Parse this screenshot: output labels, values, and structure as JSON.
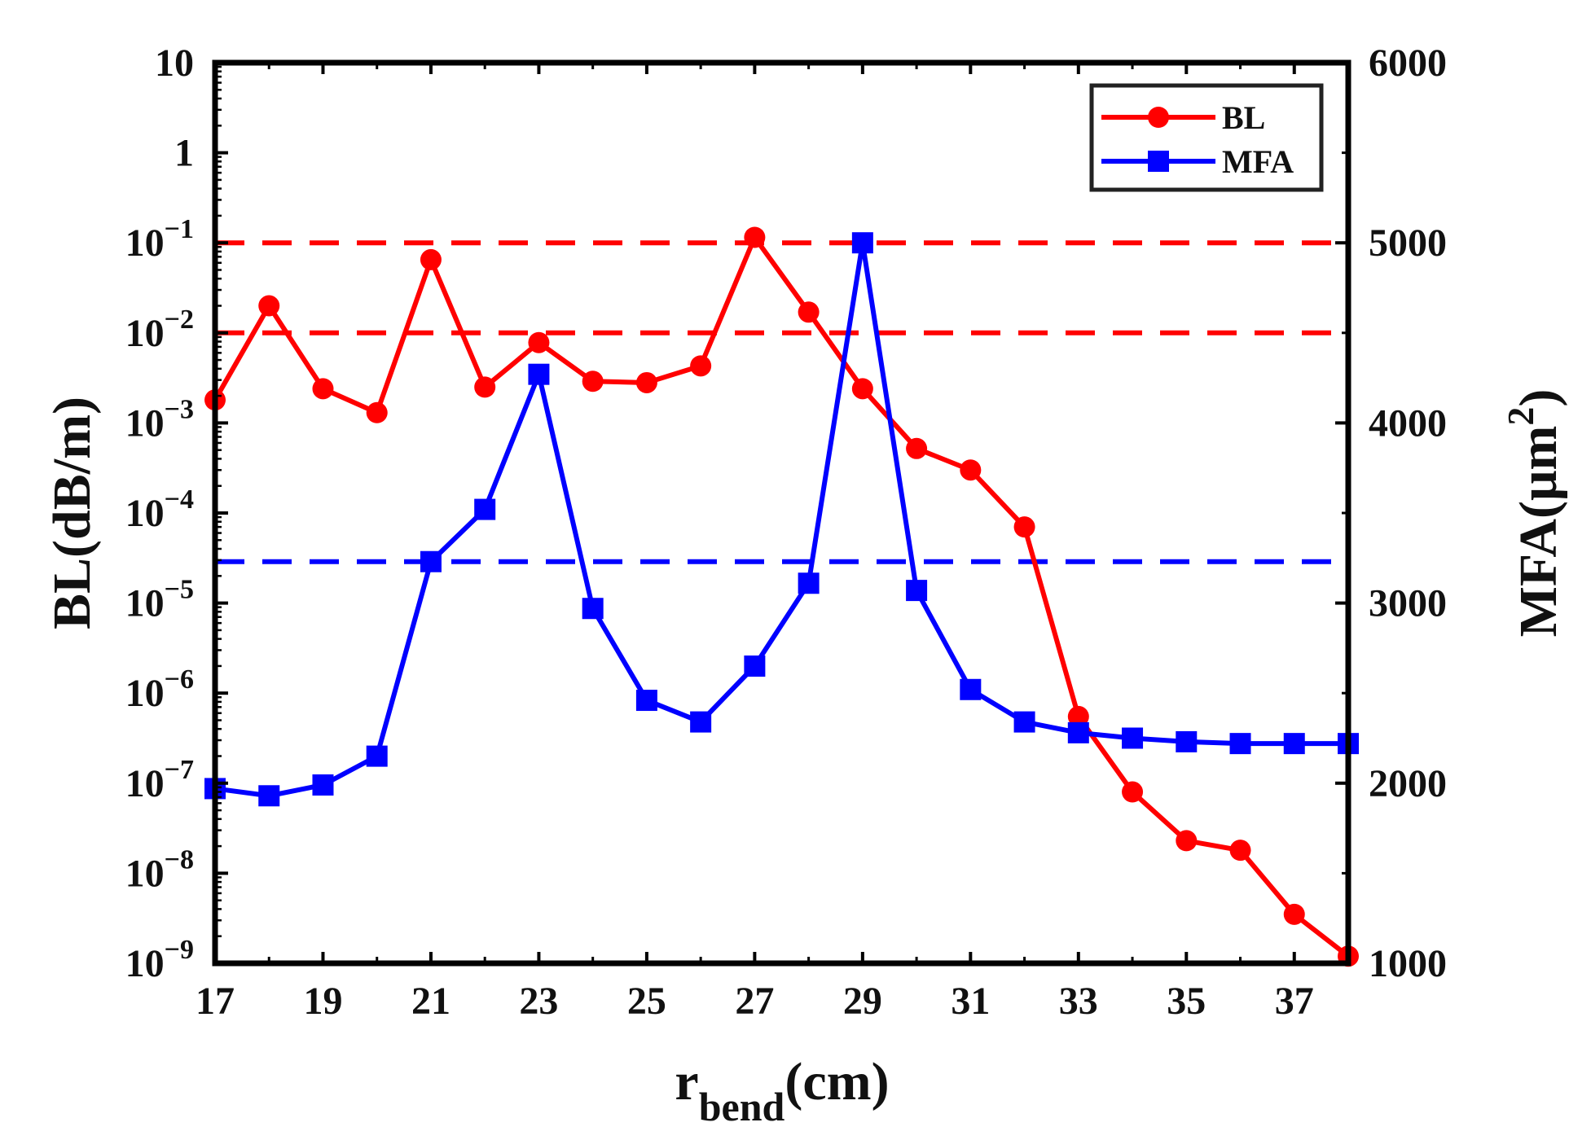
{
  "chart_data": {
    "type": "line",
    "x_axis": {
      "label_main": "r",
      "label_sub": "bend",
      "label_unit": "(cm)",
      "range": [
        17,
        38
      ],
      "ticks": [
        17,
        19,
        21,
        23,
        25,
        27,
        29,
        31,
        33,
        35,
        37
      ]
    },
    "y_left": {
      "label": "BL(dB/m)",
      "scale": "log",
      "range": [
        1e-09,
        10
      ],
      "tick_labels": [
        {
          "value": 10,
          "base": "10",
          "exp": ""
        },
        {
          "value": 1,
          "base": "1",
          "exp": ""
        },
        {
          "value": 0.1,
          "base": "10",
          "exp": "−1"
        },
        {
          "value": 0.01,
          "base": "10",
          "exp": "−2"
        },
        {
          "value": 0.001,
          "base": "10",
          "exp": "−3"
        },
        {
          "value": 0.0001,
          "base": "10",
          "exp": "−4"
        },
        {
          "value": 1e-05,
          "base": "10",
          "exp": "−5"
        },
        {
          "value": 1e-06,
          "base": "10",
          "exp": "−6"
        },
        {
          "value": 1e-07,
          "base": "10",
          "exp": "−7"
        },
        {
          "value": 1e-08,
          "base": "10",
          "exp": "−8"
        },
        {
          "value": 1e-09,
          "base": "10",
          "exp": "−9"
        }
      ]
    },
    "y_right": {
      "label_main": "MFA(μm",
      "label_exp": "2",
      "label_close": ")",
      "scale": "linear",
      "range": [
        1000,
        6000
      ],
      "ticks": [
        1000,
        2000,
        3000,
        4000,
        5000,
        6000
      ]
    },
    "series": [
      {
        "name": "BL",
        "axis": "left",
        "color": "#ff0000",
        "marker": "circle",
        "x": [
          17,
          18,
          19,
          20,
          21,
          22,
          23,
          24,
          25,
          26,
          27,
          28,
          29,
          30,
          31,
          32,
          33,
          34,
          35,
          36,
          37,
          38
        ],
        "values": [
          0.0018,
          0.02,
          0.0024,
          0.0013,
          0.065,
          0.0025,
          0.0078,
          0.0029,
          0.0028,
          0.0043,
          0.115,
          0.017,
          0.0024,
          0.00052,
          0.0003,
          7e-05,
          5.5e-07,
          8e-08,
          2.3e-08,
          1.8e-08,
          3.5e-09,
          1.2e-09
        ]
      },
      {
        "name": "MFA",
        "axis": "right",
        "color": "#0000ff",
        "marker": "square",
        "x": [
          17,
          18,
          19,
          20,
          21,
          22,
          23,
          24,
          25,
          26,
          27,
          28,
          29,
          30,
          31,
          32,
          33,
          34,
          35,
          36,
          37,
          38
        ],
        "values": [
          1970,
          1930,
          1990,
          2150,
          3230,
          3520,
          4270,
          2970,
          2460,
          2340,
          2650,
          3110,
          5000,
          3070,
          2520,
          2340,
          2280,
          2250,
          2230,
          2220,
          2220,
          2220
        ]
      }
    ],
    "reference_lines": [
      {
        "axis": "left",
        "value": 0.1,
        "color": "#ff0000",
        "style": "dashed"
      },
      {
        "axis": "left",
        "value": 0.01,
        "color": "#ff0000",
        "style": "dashed"
      },
      {
        "axis": "right",
        "value": 3230,
        "color": "#0000ff",
        "style": "dashed"
      }
    ],
    "legend": {
      "position": "top-right",
      "entries": [
        {
          "label": "BL",
          "color": "#ff0000",
          "marker": "circle"
        },
        {
          "label": "MFA",
          "color": "#0000ff",
          "marker": "square"
        }
      ]
    }
  }
}
